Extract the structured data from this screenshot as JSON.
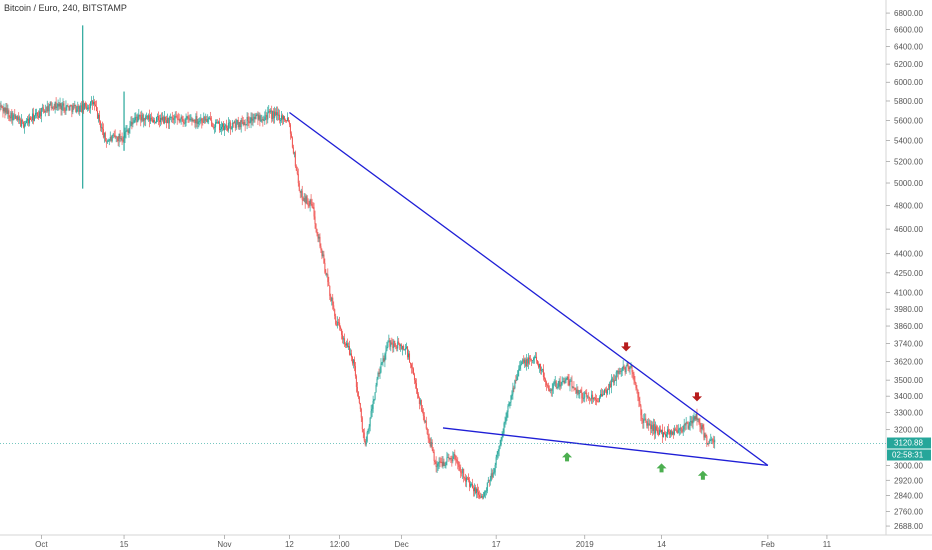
{
  "chart_data": {
    "type": "candlestick",
    "title": "Bitcoin / Euro, 240, BITSTAMP",
    "y_axis": {
      "ticks": [
        6800,
        6600,
        6400,
        6200,
        6000,
        5800,
        5600,
        5400,
        5200,
        5000,
        4800,
        4600,
        4400,
        4250,
        4100,
        3980,
        3860,
        3740,
        3620,
        3500,
        3400,
        3300,
        3200,
        3000,
        2920,
        2840,
        2760,
        2688
      ],
      "tick_labels": [
        "6800.00",
        "6600.00",
        "6400.00",
        "6200.00",
        "6000.00",
        "5800.00",
        "5600.00",
        "5400.00",
        "5200.00",
        "5000.00",
        "4800.00",
        "4600.00",
        "4400.00",
        "4250.00",
        "4100.00",
        "3980.00",
        "3860.00",
        "3740.00",
        "3620.00",
        "3500.00",
        "3400.00",
        "3300.00",
        "3200.00",
        "3000.00",
        "2920.00",
        "2840.00",
        "2760.00",
        "2688.00"
      ],
      "scale": "log"
    },
    "x_axis": {
      "labels": [
        "Oct",
        "15",
        "Nov",
        "12",
        "12:00",
        "Dec",
        "17",
        "2019",
        "14",
        "Feb",
        "11"
      ],
      "label_values": [
        "2018-10-01",
        "2018-10-15",
        "2018-11-01",
        "2018-11-12",
        "2018-11-20T12:00",
        "2018-12-01",
        "2018-12-17",
        "2019-01-01",
        "2019-01-14",
        "2019-02-01",
        "2019-02-11"
      ],
      "start": "2018-09-24",
      "end": "2019-02-21"
    },
    "last_price": "3120.88",
    "countdown": "02:58:31",
    "trendlines": [
      {
        "name": "descending-resistance",
        "from": [
          "2018-11-12",
          5680
        ],
        "to": [
          "2019-02-01",
          3000
        ]
      },
      {
        "name": "support",
        "from": [
          "2018-12-08",
          3210
        ],
        "to": [
          "2019-02-01",
          3000
        ]
      }
    ],
    "markers": [
      {
        "type": "down",
        "date": "2019-01-08",
        "price": 3700
      },
      {
        "type": "down",
        "date": "2019-01-20",
        "price": 3380
      },
      {
        "type": "up",
        "date": "2018-12-29",
        "price": 3060
      },
      {
        "type": "up",
        "date": "2019-01-14",
        "price": 3000
      },
      {
        "type": "up",
        "date": "2019-01-21",
        "price": 2960
      }
    ],
    "price_path": [
      [
        "2018-09-24",
        5750
      ],
      [
        "2018-09-28",
        5560
      ],
      [
        "2018-10-03",
        5760
      ],
      [
        "2018-10-08",
        5720
      ],
      [
        "2018-10-10",
        5780
      ],
      [
        "2018-10-12",
        5400
      ],
      [
        "2018-10-15",
        5440
      ],
      [
        "2018-10-17",
        5620
      ],
      [
        "2018-10-22",
        5600
      ],
      [
        "2018-10-29",
        5610
      ],
      [
        "2018-11-01",
        5520
      ],
      [
        "2018-11-06",
        5620
      ],
      [
        "2018-11-09",
        5660
      ],
      [
        "2018-11-12",
        5620
      ],
      [
        "2018-11-14",
        4900
      ],
      [
        "2018-11-16",
        4800
      ],
      [
        "2018-11-19",
        4100
      ],
      [
        "2018-11-20",
        3900
      ],
      [
        "2018-11-23",
        3620
      ],
      [
        "2018-11-25",
        3100
      ],
      [
        "2018-11-27",
        3500
      ],
      [
        "2018-11-29",
        3750
      ],
      [
        "2018-12-02",
        3700
      ],
      [
        "2018-12-04",
        3400
      ],
      [
        "2018-12-07",
        3000
      ],
      [
        "2018-12-10",
        3050
      ],
      [
        "2018-12-13",
        2880
      ],
      [
        "2018-12-15",
        2830
      ],
      [
        "2018-12-17",
        3000
      ],
      [
        "2018-12-19",
        3300
      ],
      [
        "2018-12-21",
        3600
      ],
      [
        "2018-12-24",
        3640
      ],
      [
        "2018-12-26",
        3450
      ],
      [
        "2018-12-29",
        3500
      ],
      [
        "2019-01-01",
        3400
      ],
      [
        "2019-01-04",
        3390
      ],
      [
        "2019-01-07",
        3560
      ],
      [
        "2019-01-09",
        3590
      ],
      [
        "2019-01-11",
        3250
      ],
      [
        "2019-01-14",
        3180
      ],
      [
        "2019-01-16",
        3190
      ],
      [
        "2019-01-19",
        3230
      ],
      [
        "2019-01-20",
        3280
      ],
      [
        "2019-01-22",
        3130
      ],
      [
        "2019-01-23",
        3120
      ]
    ],
    "spikes": [
      {
        "date": "2018-10-08",
        "high": 6650,
        "low": 4950
      },
      {
        "date": "2018-10-15",
        "high": 5900,
        "low": 5300
      }
    ],
    "colors": {
      "up": "#26a69a",
      "down": "#ef5350",
      "trendline": "#1f1fd6",
      "marker_up": "#4caf50",
      "marker_down": "#b71c1c",
      "price_badge": "#26a69a"
    },
    "grid": false
  }
}
